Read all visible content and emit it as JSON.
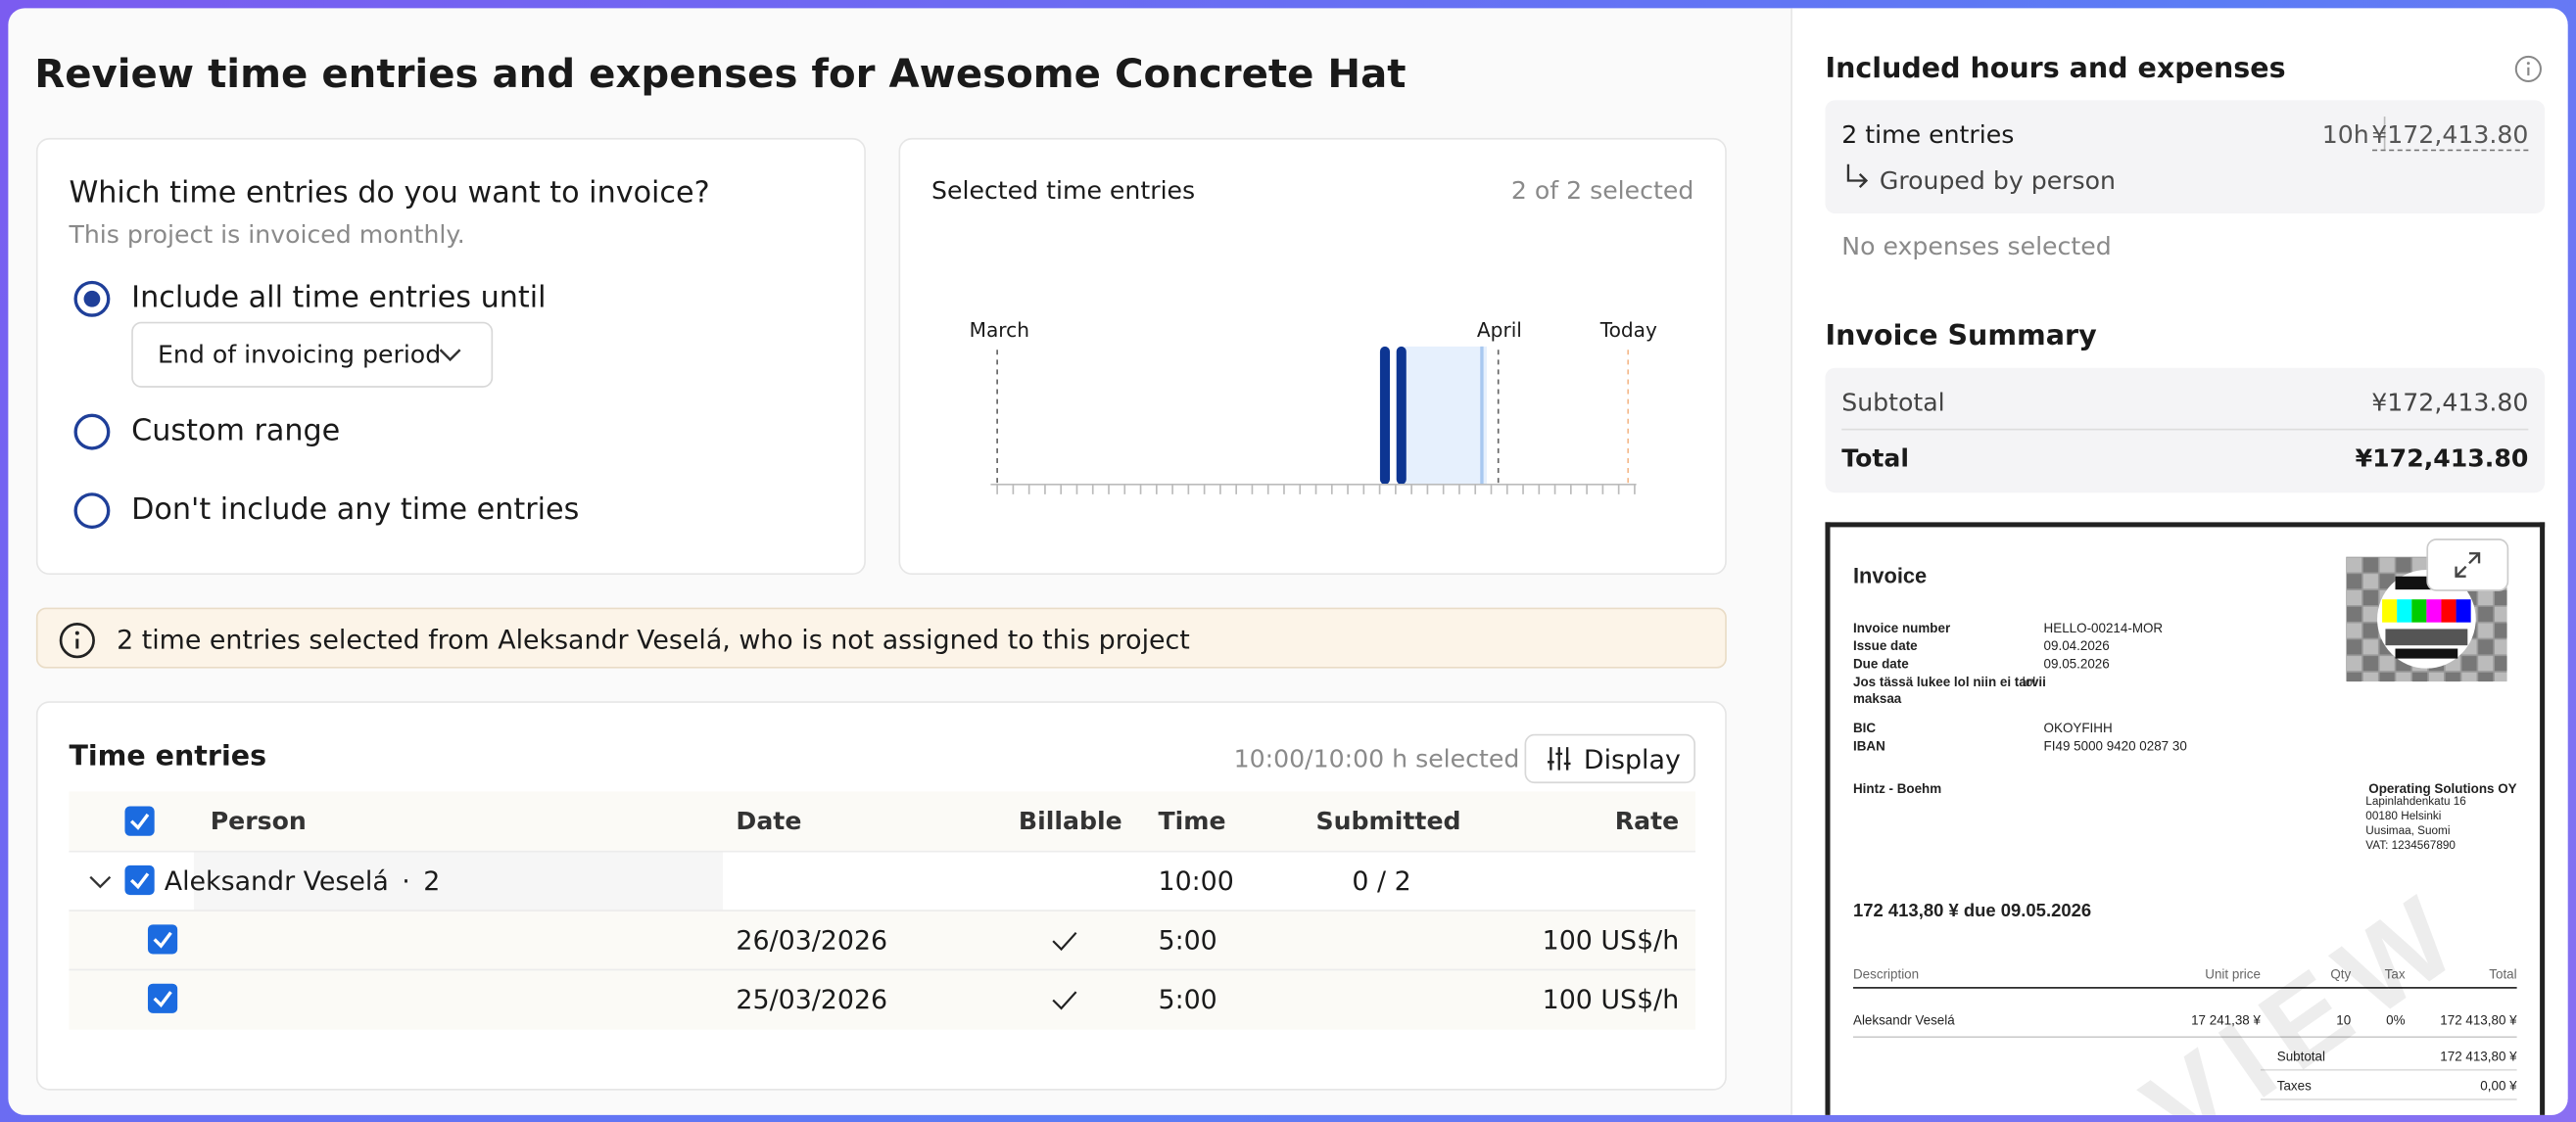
{
  "header": {
    "title": "Review time entries and expenses for Awesome Concrete Hat"
  },
  "selection": {
    "question": "Which time entries do you want to invoice?",
    "note": "This project is invoiced monthly.",
    "options": [
      "Include all time entries until",
      "Custom range",
      "Don't include any time entries"
    ],
    "dropdown": "End of invoicing period"
  },
  "timeline": {
    "title": "Selected time entries",
    "count": "2 of 2 selected",
    "labels": [
      "March",
      "April",
      "Today"
    ]
  },
  "warning": "2 time entries selected from Aleksandr Veselá, who is not assigned to this project",
  "entries": {
    "title": "Time entries",
    "selected": "10:00/10:00 h selected",
    "display_button": "Display",
    "headers": [
      "Person",
      "Date",
      "Billable",
      "Time",
      "Submitted",
      "Rate"
    ],
    "group": {
      "person": "Aleksandr Veselá",
      "count": "2",
      "time": "10:00",
      "submitted": "0 / 2"
    },
    "rows": [
      {
        "date": "26/03/2026",
        "time": "5:00",
        "rate": "100 US$/h"
      },
      {
        "date": "25/03/2026",
        "time": "5:00",
        "rate": "100 US$/h"
      }
    ]
  },
  "included": {
    "title": "Included hours and expenses",
    "entries": "2 time entries",
    "hours": "10h",
    "amount": "¥172,413.80",
    "grouping": "Grouped by person",
    "expenses": "No expenses selected"
  },
  "summary": {
    "title": "Invoice Summary",
    "rows": [
      [
        "Subtotal",
        "¥172,413.80"
      ],
      [
        "Total",
        "¥172,413.80"
      ]
    ]
  },
  "invoice": {
    "title": "Invoice",
    "fields": [
      [
        "Invoice number",
        "HELLO-00214-MOR"
      ],
      [
        "Issue date",
        "09.04.2026"
      ],
      [
        "Due date",
        "09.05.2026"
      ],
      [
        "Jos tässä lukee lol niin ei tarvii maksaa",
        "lol"
      ],
      [
        "BIC",
        "OKOYFIHH"
      ],
      [
        "IBAN",
        "FI49 5000 9420 0287 30"
      ]
    ],
    "customer": "Hintz - Boehm",
    "company": [
      "Operating Solutions OY",
      "Lapinlahdenkatu 16",
      "00180 Helsinki",
      "Uusimaa, Suomi",
      "VAT: 1234567890"
    ],
    "due": "172 413,80 ¥ due 09.05.2026",
    "table_headers": [
      "Description",
      "Unit price",
      "Qty",
      "Tax",
      "Total"
    ],
    "table_row": [
      "Aleksandr Veselá",
      "17 241,38 ¥",
      "10",
      "0%",
      "172 413,80 ¥"
    ],
    "totals": [
      [
        "Subtotal",
        "172 413,80 ¥"
      ],
      [
        "Taxes",
        "0,00 ¥"
      ]
    ],
    "watermark": "VIEW"
  }
}
